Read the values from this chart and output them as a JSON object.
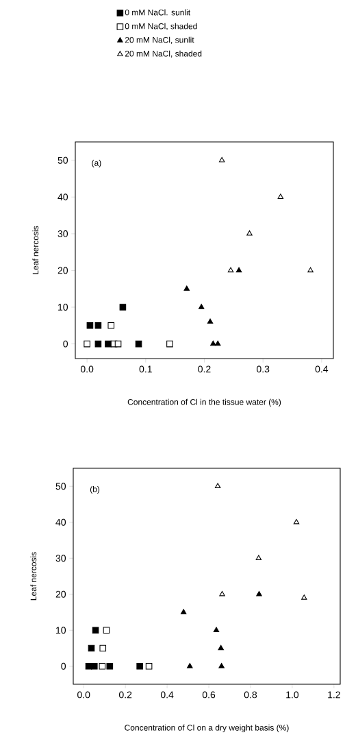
{
  "chart_data": [
    {
      "type": "scatter",
      "xlabel": "Concentration of Cl in the tissue water (%)",
      "ylabel": "Leaf nercosis",
      "annotations": [
        "(a)"
      ],
      "legend": "top",
      "xlim": [
        -0.02,
        0.42
      ],
      "ylim": [
        -4,
        55
      ],
      "xticks": [
        {
          "value": 0,
          "label": "0.0"
        },
        {
          "value": 0.1,
          "label": "0.1"
        },
        {
          "value": 0.2,
          "label": "0.2"
        },
        {
          "value": 0.3,
          "label": "0.3"
        },
        {
          "value": 0.4,
          "label": "0.4"
        }
      ],
      "yticks": [
        0,
        10,
        20,
        30,
        40,
        50
      ],
      "series": [
        {
          "name": "0 mM NaCl. sunlit",
          "marker": "square",
          "color": "#000000",
          "x": [
            0.005,
            0.019,
            0.061,
            0.019,
            0.036,
            0.088
          ],
          "values": [
            5,
            5,
            10,
            0,
            0,
            0
          ]
        },
        {
          "name": "0 mM NaCl, shaded",
          "marker": "square",
          "color": "#ffffff",
          "x": [
            0.0,
            0.041,
            0.046,
            0.053,
            0.141
          ],
          "values": [
            0,
            5,
            0,
            0,
            0
          ]
        },
        {
          "name": "20 mM NaCl, sunlit",
          "marker": "triangle",
          "color": "#000000",
          "x": [
            0.17,
            0.195,
            0.21,
            0.215,
            0.223,
            0.259
          ],
          "values": [
            15,
            10,
            6,
            0,
            0,
            20
          ]
        },
        {
          "name": "20 mM NaCl, shaded",
          "marker": "triangle",
          "color": "#ffffff",
          "x": [
            0.23,
            0.245,
            0.277,
            0.33,
            0.381
          ],
          "values": [
            50,
            20,
            30,
            40,
            20
          ]
        }
      ]
    },
    {
      "type": "scatter",
      "xlabel": "Concentration of Cl on a dry weight basis (%)",
      "ylabel": "Leaf nercosis",
      "annotations": [
        "(b)"
      ],
      "xlim": [
        -0.05,
        1.23
      ],
      "ylim": [
        -5,
        55
      ],
      "xticks": [
        {
          "value": 0,
          "label": "0.0"
        },
        {
          "value": 0.2,
          "label": "0.2"
        },
        {
          "value": 0.4,
          "label": "0.4"
        },
        {
          "value": 0.6,
          "label": "0.6"
        },
        {
          "value": 0.8,
          "label": "0.8"
        },
        {
          "value": 1.0,
          "label": "1.0"
        },
        {
          "value": 1.2,
          "label": "1.2"
        }
      ],
      "yticks": [
        0,
        10,
        20,
        30,
        40,
        50
      ],
      "series": [
        {
          "marker": "square",
          "color": "#000000",
          "x": [
            0.057,
            0.037,
            0.024,
            0.051,
            0.125,
            0.269
          ],
          "values": [
            10,
            5,
            0,
            0,
            0,
            0
          ]
        },
        {
          "marker": "square",
          "color": "#ffffff",
          "x": [
            0.109,
            0.092,
            0.089,
            0.313
          ],
          "values": [
            10,
            5,
            0,
            0
          ]
        },
        {
          "marker": "triangle",
          "color": "#000000",
          "x": [
            0.479,
            0.636,
            0.658,
            0.509,
            0.661,
            0.841
          ],
          "values": [
            15,
            10,
            5,
            0,
            0,
            20
          ]
        },
        {
          "marker": "triangle",
          "color": "#ffffff",
          "x": [
            0.643,
            0.664,
            0.839,
            1.02,
            1.057
          ],
          "values": [
            50,
            20,
            30,
            40,
            19
          ]
        }
      ]
    }
  ]
}
